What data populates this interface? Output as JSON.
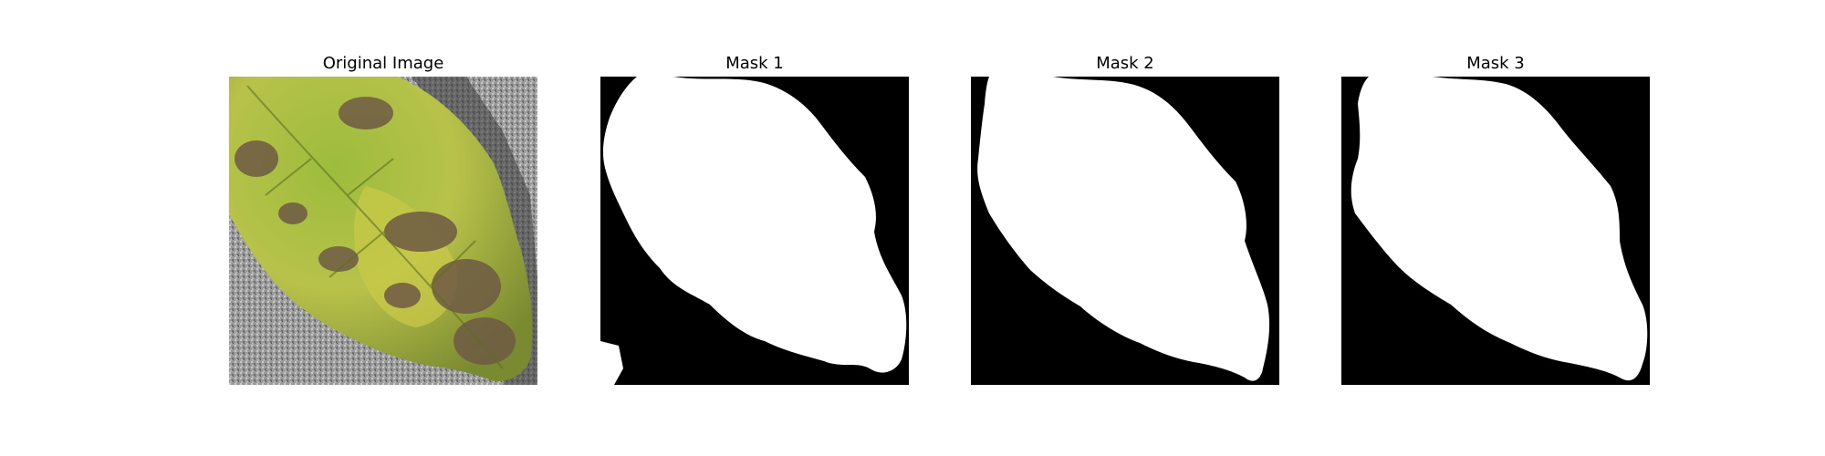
{
  "figure": {
    "panels": [
      {
        "title": "Original Image",
        "kind": "photo"
      },
      {
        "title": "Mask 1",
        "kind": "mask"
      },
      {
        "title": "Mask 2",
        "kind": "mask"
      },
      {
        "title": "Mask 3",
        "kind": "mask"
      }
    ]
  },
  "colors": {
    "mask_background": "#000000",
    "mask_foreground": "#ffffff",
    "leaf_green": "#8fb03a",
    "leaf_yellow": "#c8c848",
    "lesion_brown": "#6e5a44",
    "ground_gray": "#9a9a9a"
  }
}
